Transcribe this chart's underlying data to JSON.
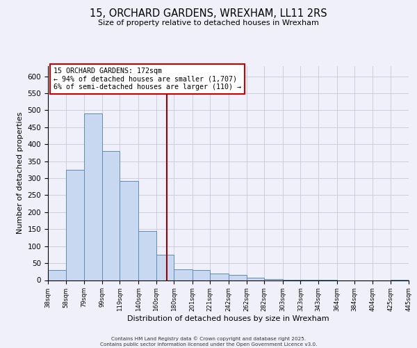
{
  "title": "15, ORCHARD GARDENS, WREXHAM, LL11 2RS",
  "subtitle": "Size of property relative to detached houses in Wrexham",
  "xlabel": "Distribution of detached houses by size in Wrexham",
  "ylabel": "Number of detached properties",
  "bar_color": "#c8d8f0",
  "bar_edge_color": "#5b8db8",
  "background_color": "#f0f0fa",
  "grid_color": "#c8c8dc",
  "vline_x": 172,
  "vline_color": "#990000",
  "annotation_lines": [
    "15 ORCHARD GARDENS: 172sqm",
    "← 94% of detached houses are smaller (1,707)",
    "6% of semi-detached houses are larger (110) →"
  ],
  "annotation_box_edge": "#cc0000",
  "footer_lines": [
    "Contains HM Land Registry data © Crown copyright and database right 2025.",
    "Contains public sector information licensed under the Open Government Licence v3.0."
  ],
  "bins": [
    38,
    58,
    79,
    99,
    119,
    140,
    160,
    180,
    201,
    221,
    242,
    262,
    282,
    303,
    323,
    343,
    364,
    384,
    404,
    425,
    445
  ],
  "counts": [
    30,
    325,
    490,
    380,
    292,
    145,
    75,
    32,
    30,
    20,
    15,
    8,
    3,
    2,
    1,
    1,
    0,
    0,
    0,
    1
  ],
  "ylim": [
    0,
    630
  ],
  "yticks": [
    0,
    50,
    100,
    150,
    200,
    250,
    300,
    350,
    400,
    450,
    500,
    550,
    600
  ]
}
